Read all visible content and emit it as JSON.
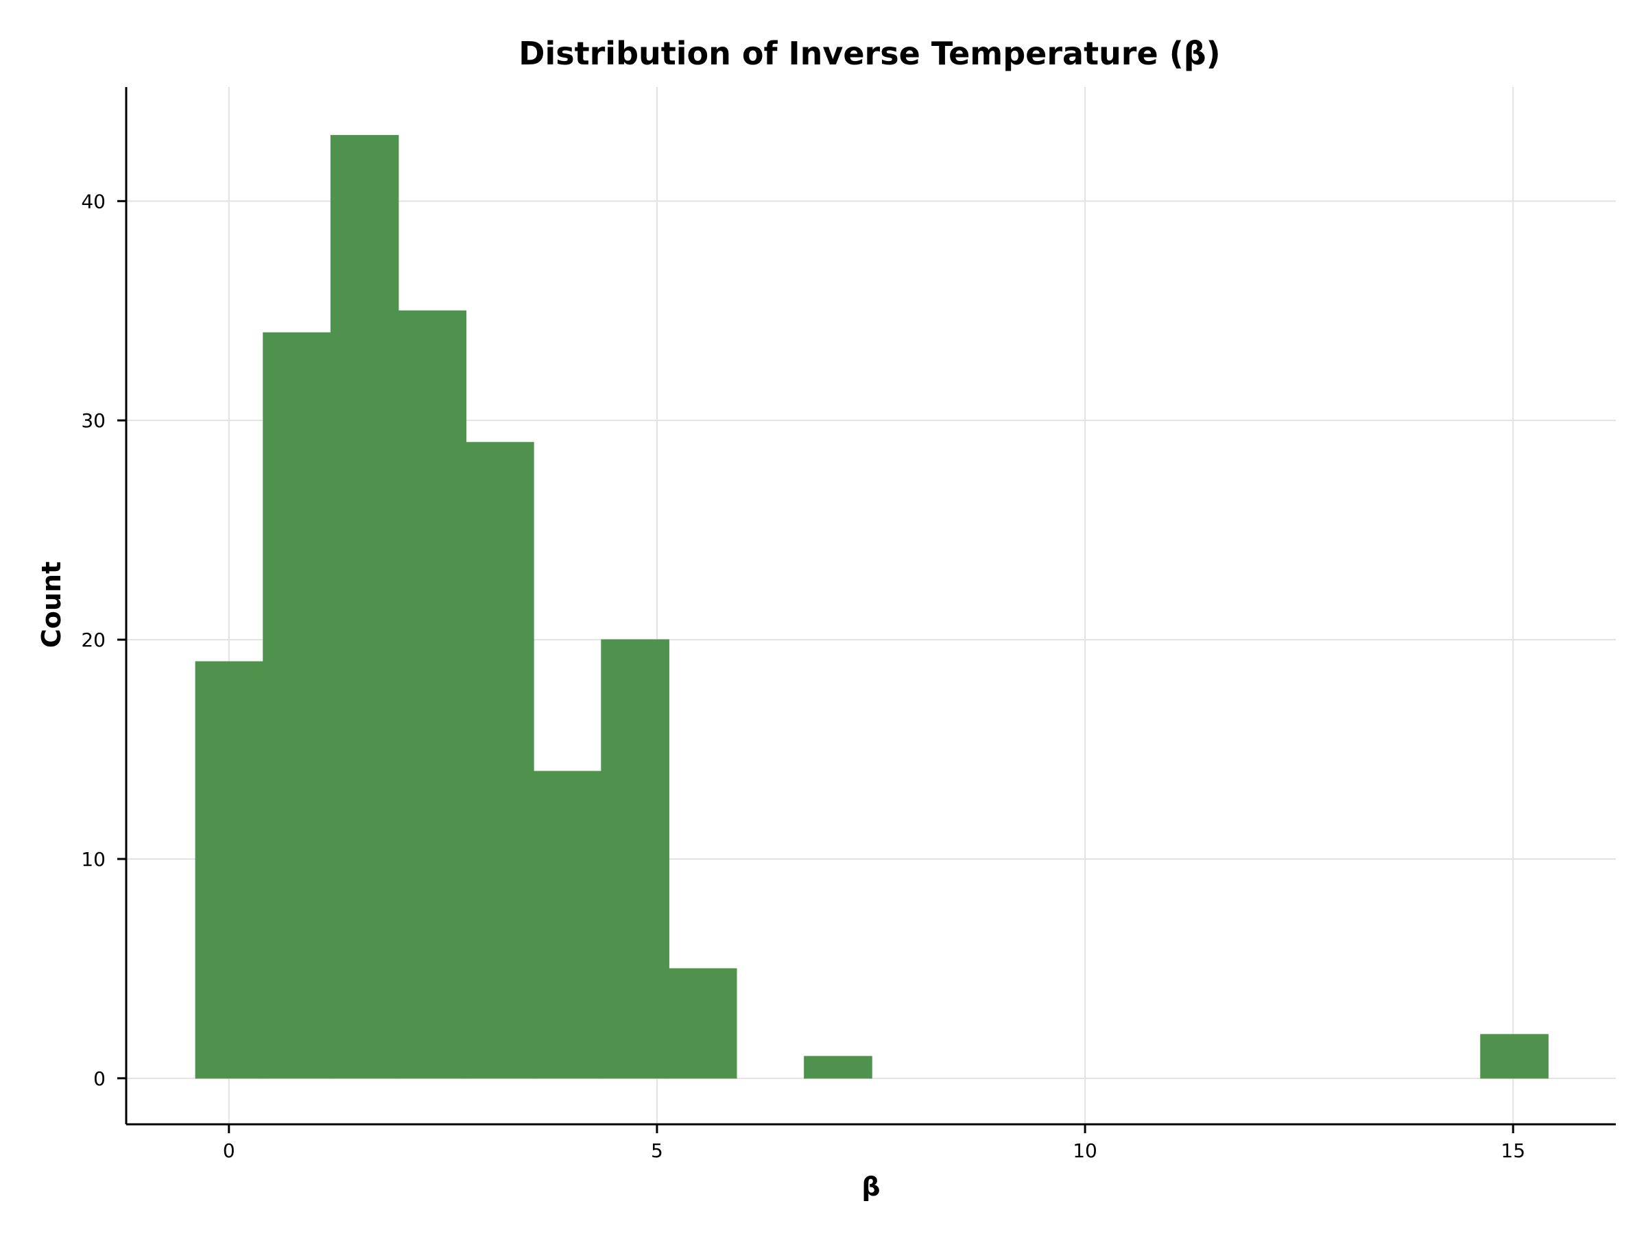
{
  "chart_data": {
    "type": "bar",
    "title": "Distribution of Inverse Temperature (β)",
    "xlabel": "β",
    "ylabel": "Count",
    "bar_color": "#4e924e",
    "bin_edges": [
      -0.39,
      0.4,
      1.19,
      1.98,
      2.77,
      3.56,
      4.35,
      5.14,
      5.93,
      6.72,
      7.51,
      8.3,
      9.09,
      9.88,
      10.67,
      11.46,
      12.25,
      13.04,
      13.83,
      14.62,
      15.41
    ],
    "counts": [
      19,
      34,
      43,
      35,
      29,
      14,
      20,
      5,
      0,
      1,
      0,
      0,
      0,
      0,
      0,
      0,
      0,
      0,
      0,
      2
    ],
    "xlim": [
      -1.2,
      16.2
    ],
    "ylim": [
      -2.1,
      45.2
    ],
    "x_ticks": [
      0,
      5,
      10,
      15
    ],
    "x_tick_labels": [
      "0",
      "5",
      "10",
      "15"
    ],
    "y_ticks": [
      0,
      10,
      20,
      30,
      40
    ],
    "y_tick_labels": [
      "0",
      "10",
      "20",
      "30",
      "40"
    ],
    "grid": true
  }
}
